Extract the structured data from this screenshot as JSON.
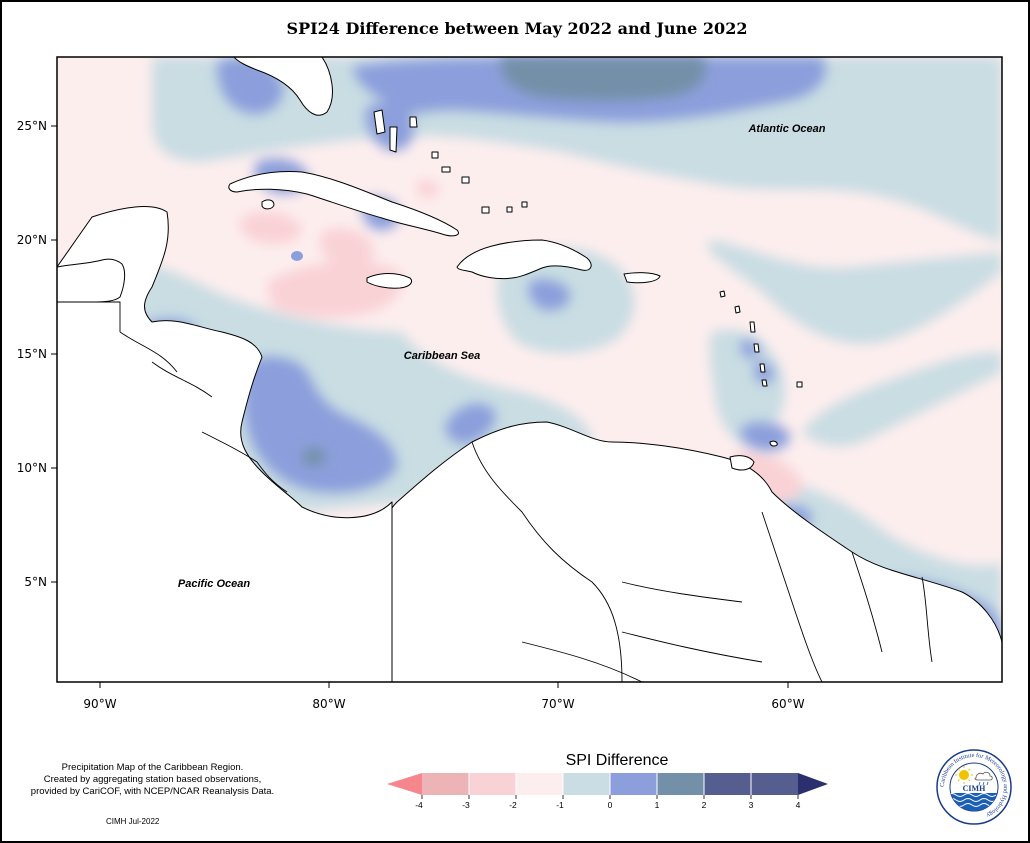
{
  "title": "SPI24 Difference between May 2022 and June 2022",
  "axes": {
    "lat_labels": [
      "25°N",
      "20°N",
      "15°N",
      "10°N",
      "5°N"
    ],
    "lon_labels": [
      "90°W",
      "80°W",
      "70°W",
      "60°W"
    ]
  },
  "ocean_labels": {
    "atlantic": "Atlantic Ocean",
    "caribbean": "Caribbean Sea",
    "pacific": "Pacific Ocean"
  },
  "credits": {
    "line1": "Precipitation Map of the Caribbean Region.",
    "line2": "Created by aggregating station based observations,",
    "line3": "provided by CariCOF, with NCEP/NCAR Reanalysis Data.",
    "stamp": "CIMH Jul-2022"
  },
  "legend": {
    "title": "SPI Difference",
    "ticks": [
      "-4",
      "-3",
      "-2",
      "-1",
      "0",
      "1",
      "2",
      "3",
      "4"
    ],
    "colors": [
      "#f4868e",
      "#ecb4b6",
      "#f9d2d6",
      "#fdeeee",
      "#c9dde3",
      "#8c9fdc",
      "#7390a8",
      "#565e8f",
      "#2c2f6e"
    ]
  },
  "colors": {
    "neg2": "#f9d2d6",
    "neg1": "#fdeeee",
    "pos0": "#c9dde3",
    "pos1": "#8c9fdc",
    "pos2": "#7390a8"
  },
  "logo": {
    "ring_text": "Caribbean Institute for Meteorology and Hydrology",
    "abbr": "CIMH"
  }
}
